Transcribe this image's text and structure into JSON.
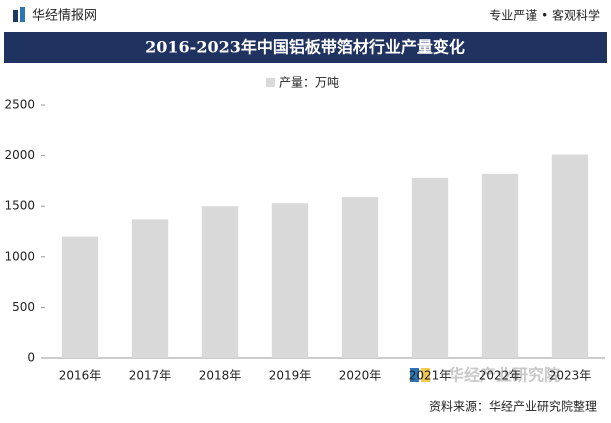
{
  "header": {
    "logo": "华经情报网",
    "slogan": "专业严谨 • 客观科学"
  },
  "chart_data": {
    "type": "bar",
    "title": "2016-2023年中国铝板带箔材行业产量变化",
    "categories": [
      "2016年",
      "2017年",
      "2018年",
      "2019年",
      "2020年",
      "2021年",
      "2022年",
      "2023年"
    ],
    "series": [
      {
        "name": "产量：万吨",
        "color": "#d9d9d9",
        "values": [
          1200,
          1370,
          1500,
          1530,
          1590,
          1780,
          1820,
          2010
        ]
      }
    ],
    "ylim": [
      0,
      2500
    ],
    "yticks": [
      0,
      500,
      1000,
      1500,
      2000,
      2500
    ],
    "grid": false
  },
  "footer": {
    "brand": "华经产业研究院",
    "source": "资料来源：华经产业研究院整理"
  }
}
